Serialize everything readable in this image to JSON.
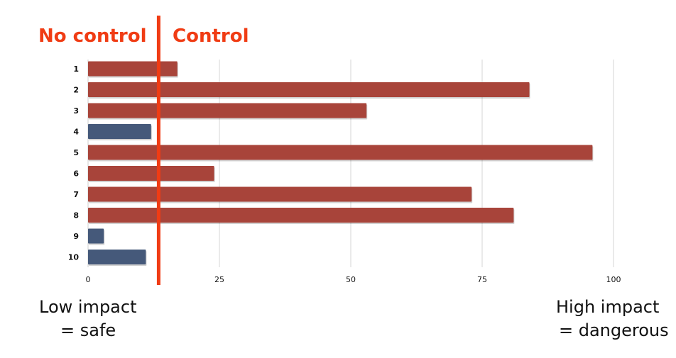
{
  "header": {
    "left_label": "No control",
    "right_label": "Control"
  },
  "footer": {
    "low_line1": "Low impact",
    "low_line2": "= safe",
    "high_line1": "High impact",
    "high_line2": "= dangerous"
  },
  "colors": {
    "high_bar": "#a8443a",
    "low_bar": "#45597a",
    "threshold_line": "#f03c14",
    "header_text": "#f03c14",
    "grid": "#d4d4d4"
  },
  "chart_data": {
    "type": "bar",
    "orientation": "horizontal",
    "categories": [
      "1",
      "2",
      "3",
      "4",
      "5",
      "6",
      "7",
      "8",
      "9",
      "10"
    ],
    "values": [
      17,
      84,
      53,
      12,
      96,
      24,
      73,
      81,
      3,
      11
    ],
    "bar_colors": [
      "high",
      "high",
      "high",
      "low",
      "high",
      "high",
      "high",
      "high",
      "low",
      "low"
    ],
    "xlim": [
      0,
      100
    ],
    "xticks": [
      "0",
      "25",
      "50",
      "75",
      "100"
    ],
    "xtick_values": [
      0,
      25,
      50,
      75,
      100
    ],
    "threshold": 13.5,
    "grid": true
  }
}
